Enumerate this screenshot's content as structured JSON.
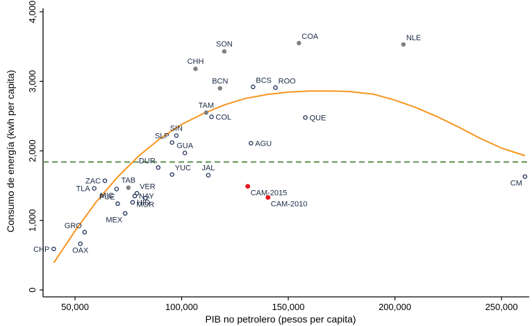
{
  "chart_data": {
    "type": "scatter",
    "title": "",
    "xlabel": "PIB no petrolero (pesos per capita)",
    "ylabel": "Consumo de energía (kwh per capita)",
    "xlim": [
      35000,
      263000
    ],
    "ylim": [
      -100,
      4050
    ],
    "x_ticks": [
      50000,
      100000,
      150000,
      200000,
      250000
    ],
    "x_tick_labels": [
      "50,000",
      "100,000",
      "150,000",
      "200,000",
      "250,000"
    ],
    "y_ticks": [
      0,
      1000,
      2000,
      3000,
      4000
    ],
    "y_tick_labels": [
      "0",
      "1,000",
      "2,000",
      "3,000",
      "4,000"
    ],
    "grid": false,
    "colors": {
      "hollow": "#1a2a55",
      "gray": "#808080",
      "red": "#e8141c",
      "fit": "#f7941d",
      "reference": "#3a7d2c",
      "axis": "#000000"
    },
    "reference_line": {
      "y": 1840,
      "style": "dashed"
    },
    "fit_curve": {
      "type": "quadratic",
      "points": [
        [
          40000,
          390
        ],
        [
          50000,
          850
        ],
        [
          60000,
          1270
        ],
        [
          70000,
          1625
        ],
        [
          80000,
          1930
        ],
        [
          90000,
          2180
        ],
        [
          100000,
          2380
        ],
        [
          110000,
          2535
        ],
        [
          120000,
          2660
        ],
        [
          130000,
          2755
        ],
        [
          140000,
          2810
        ],
        [
          150000,
          2845
        ],
        [
          160000,
          2860
        ],
        [
          170000,
          2860
        ],
        [
          178000,
          2855
        ],
        [
          190000,
          2815
        ],
        [
          200000,
          2730
        ],
        [
          210000,
          2620
        ],
        [
          220000,
          2490
        ],
        [
          230000,
          2340
        ],
        [
          240000,
          2180
        ],
        [
          250000,
          2040
        ],
        [
          261000,
          1930
        ]
      ]
    },
    "points": [
      {
        "label": "CHP",
        "x": 40000,
        "y": 590,
        "style": "hollow",
        "anchor": "left"
      },
      {
        "label": "OAX",
        "x": 52500,
        "y": 665,
        "style": "hollow",
        "anchor": "below"
      },
      {
        "label": "GRO",
        "x": 54500,
        "y": 830,
        "style": "hollow",
        "anchor": "above-left"
      },
      {
        "label": "MEX",
        "x": 73500,
        "y": 1100,
        "style": "hollow",
        "anchor": "below-left"
      },
      {
        "label": "TLA",
        "x": 59000,
        "y": 1460,
        "style": "hollow",
        "anchor": "left"
      },
      {
        "label": "ZAC",
        "x": 64000,
        "y": 1570,
        "style": "hollow",
        "anchor": "left"
      },
      {
        "label": "MIC",
        "x": 69500,
        "y": 1450,
        "style": "hollow",
        "anchor": "below-left"
      },
      {
        "label": "PUE",
        "x": 70000,
        "y": 1240,
        "style": "hollow",
        "anchor": "above-left"
      },
      {
        "label": "TAB",
        "x": 75000,
        "y": 1470,
        "style": "gray",
        "anchor": "above"
      },
      {
        "label": "HID",
        "x": 77000,
        "y": 1260,
        "style": "hollow",
        "anchor": "right"
      },
      {
        "label": "VER",
        "x": 79000,
        "y": 1390,
        "style": "hollow",
        "anchor": "above-right"
      },
      {
        "label": "NAY",
        "x": 78000,
        "y": 1350,
        "style": "hollow",
        "anchor": "right"
      },
      {
        "label": "MOR",
        "x": 83000,
        "y": 1320,
        "style": "hollow",
        "anchor": "below"
      },
      {
        "label": "DUR",
        "x": 89000,
        "y": 1760,
        "style": "hollow",
        "anchor": "above-left"
      },
      {
        "label": "YUC",
        "x": 95500,
        "y": 1660,
        "style": "hollow",
        "anchor": "above-right"
      },
      {
        "label": "SIN",
        "x": 97500,
        "y": 2220,
        "style": "hollow",
        "anchor": "above"
      },
      {
        "label": "SLP",
        "x": 95500,
        "y": 2120,
        "style": "hollow",
        "anchor": "above-left"
      },
      {
        "label": "GUA",
        "x": 101500,
        "y": 1970,
        "style": "hollow",
        "anchor": "above"
      },
      {
        "label": "JAL",
        "x": 112500,
        "y": 1650,
        "style": "hollow",
        "anchor": "above"
      },
      {
        "label": "TAM",
        "x": 111500,
        "y": 2550,
        "style": "gray",
        "anchor": "above"
      },
      {
        "label": "COL",
        "x": 114000,
        "y": 2490,
        "style": "hollow",
        "anchor": "right"
      },
      {
        "label": "AGU",
        "x": 132500,
        "y": 2110,
        "style": "hollow",
        "anchor": "right"
      },
      {
        "label": "QUE",
        "x": 158000,
        "y": 2480,
        "style": "hollow",
        "anchor": "right"
      },
      {
        "label": "BCN",
        "x": 118000,
        "y": 2900,
        "style": "gray",
        "anchor": "above"
      },
      {
        "label": "BCS",
        "x": 133500,
        "y": 2920,
        "style": "hollow",
        "anchor": "above-right"
      },
      {
        "label": "ROO",
        "x": 144000,
        "y": 2910,
        "style": "hollow",
        "anchor": "above-right"
      },
      {
        "label": "CHH",
        "x": 106500,
        "y": 3180,
        "style": "gray",
        "anchor": "above"
      },
      {
        "label": "SON",
        "x": 120000,
        "y": 3430,
        "style": "gray",
        "anchor": "above"
      },
      {
        "label": "COA",
        "x": 155000,
        "y": 3550,
        "style": "gray",
        "anchor": "above-right"
      },
      {
        "label": "NLE",
        "x": 204000,
        "y": 3530,
        "style": "gray",
        "anchor": "above-right"
      },
      {
        "label": "CM",
        "x": 261000,
        "y": 1630,
        "style": "hollow",
        "anchor": "below-left"
      },
      {
        "label": "CAM-2015",
        "x": 131000,
        "y": 1490,
        "style": "red",
        "anchor": "below-right"
      },
      {
        "label": "CAM-2010",
        "x": 140500,
        "y": 1330,
        "style": "red",
        "anchor": "below-right"
      }
    ]
  }
}
